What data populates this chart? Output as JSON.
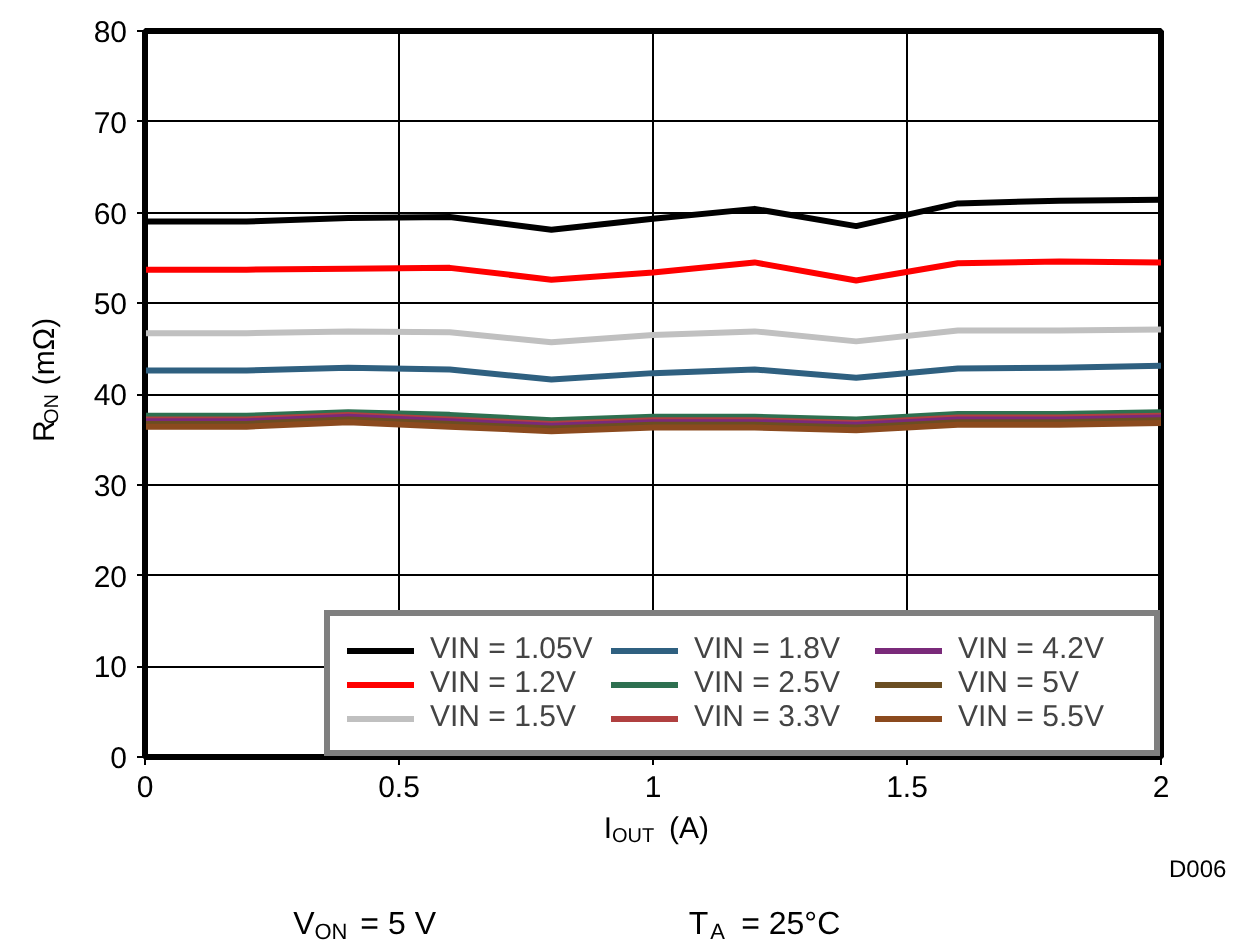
{
  "chart_data": {
    "type": "line",
    "xlabel": "I$_{OUT}$ (A)",
    "ylabel": "R$_{ON}$ (mΩ)",
    "x": [
      0,
      0.2,
      0.4,
      0.6,
      0.8,
      1.0,
      1.2,
      1.4,
      1.6,
      1.8,
      2.0
    ],
    "xlim": [
      0,
      2
    ],
    "xticks": [
      0,
      0.5,
      1,
      1.5,
      2
    ],
    "ylim": [
      0,
      80
    ],
    "yticks": [
      0,
      10,
      20,
      30,
      40,
      50,
      60,
      70,
      80
    ],
    "grid": true,
    "legend": "bottom right",
    "line_style": "solid",
    "marker": "none",
    "annotations": [
      "V$_{ON}$ = 5 V",
      "T$_{A}$ = 25°C",
      "D006"
    ],
    "series": [
      {
        "name": "VIN = 1.05V",
        "color": "#000000",
        "values": [
          59.0,
          59.0,
          59.4,
          59.5,
          58.1,
          59.3,
          60.4,
          58.5,
          61.0,
          61.3,
          61.4
        ]
      },
      {
        "name": "VIN = 1.2V",
        "color": "#ff0000",
        "values": [
          53.7,
          53.7,
          53.8,
          53.9,
          52.6,
          53.4,
          54.5,
          52.5,
          54.4,
          54.6,
          54.5
        ]
      },
      {
        "name": "VIN = 1.5V",
        "color": "#c0c0c0",
        "values": [
          46.7,
          46.7,
          46.9,
          46.8,
          45.7,
          46.5,
          46.9,
          45.8,
          47.0,
          47.0,
          47.1
        ]
      },
      {
        "name": "VIN = 1.8V",
        "color": "#2f6080",
        "values": [
          42.6,
          42.6,
          42.9,
          42.7,
          41.6,
          42.3,
          42.7,
          41.8,
          42.8,
          42.9,
          43.1
        ]
      },
      {
        "name": "VIN = 2.5V",
        "color": "#2e7050",
        "values": [
          37.6,
          37.6,
          38.0,
          37.7,
          37.1,
          37.5,
          37.5,
          37.2,
          37.8,
          37.8,
          38.0
        ]
      },
      {
        "name": "VIN = 3.3V",
        "color": "#b04040",
        "values": [
          37.2,
          37.2,
          37.7,
          37.2,
          36.7,
          37.1,
          37.1,
          36.8,
          37.4,
          37.4,
          37.6
        ]
      },
      {
        "name": "VIN = 4.2V",
        "color": "#7a2a7a",
        "values": [
          37.0,
          37.0,
          37.5,
          37.0,
          36.5,
          36.9,
          36.9,
          36.6,
          37.2,
          37.2,
          37.4
        ]
      },
      {
        "name": "VIN = 5V",
        "color": "#6b4e22",
        "values": [
          36.7,
          36.7,
          37.2,
          36.7,
          36.2,
          36.6,
          36.6,
          36.3,
          36.9,
          36.9,
          37.1
        ]
      },
      {
        "name": "VIN = 5.5V",
        "color": "#8b4a1e",
        "values": [
          36.4,
          36.4,
          36.9,
          36.4,
          35.9,
          36.3,
          36.3,
          36.0,
          36.6,
          36.6,
          36.8
        ]
      }
    ]
  }
}
